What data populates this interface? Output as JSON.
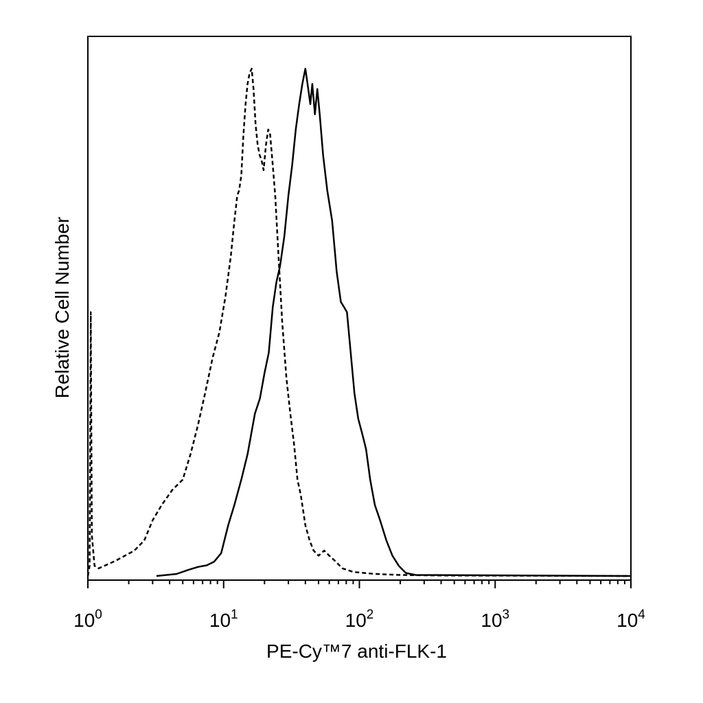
{
  "chart_data": {
    "type": "line",
    "title": "",
    "xlabel": "PE-Cy™7 anti-FLK-1",
    "ylabel": "Relative Cell Number",
    "xscale": "log",
    "xlim": [
      1,
      10000
    ],
    "ylim": [
      0,
      100
    ],
    "grid": false,
    "legend": "none",
    "x_ticks": [
      {
        "value": 1,
        "base": "10",
        "exp": "0"
      },
      {
        "value": 10,
        "base": "10",
        "exp": "1"
      },
      {
        "value": 100,
        "base": "10",
        "exp": "2"
      },
      {
        "value": 1000,
        "base": "10",
        "exp": "3"
      },
      {
        "value": 10000,
        "base": "10",
        "exp": "4"
      }
    ],
    "series": [
      {
        "style": "dashed",
        "color": "#000000",
        "points": [
          [
            1.0,
            0
          ],
          [
            1.03,
            2
          ],
          [
            1.05,
            52
          ],
          [
            1.07,
            8
          ],
          [
            1.12,
            2
          ],
          [
            1.2,
            1.5
          ],
          [
            1.6,
            3
          ],
          [
            2.2,
            5
          ],
          [
            2.6,
            7
          ],
          [
            3.0,
            11
          ],
          [
            3.5,
            14
          ],
          [
            4.2,
            17
          ],
          [
            5.0,
            19
          ],
          [
            5.7,
            24
          ],
          [
            6.5,
            30
          ],
          [
            7.3,
            36
          ],
          [
            8.3,
            43
          ],
          [
            9.3,
            48
          ],
          [
            10.3,
            55
          ],
          [
            11.3,
            63
          ],
          [
            12.0,
            70
          ],
          [
            12.6,
            75
          ],
          [
            13.0,
            76
          ],
          [
            13.5,
            79
          ],
          [
            14.0,
            87
          ],
          [
            14.5,
            93
          ],
          [
            15.0,
            97
          ],
          [
            15.5,
            99
          ],
          [
            16.1,
            100
          ],
          [
            16.6,
            96
          ],
          [
            17.2,
            89
          ],
          [
            17.8,
            85
          ],
          [
            18.4,
            83
          ],
          [
            19.0,
            82
          ],
          [
            19.7,
            80
          ],
          [
            20.5,
            85
          ],
          [
            21.3,
            88
          ],
          [
            22.0,
            87
          ],
          [
            23.0,
            81
          ],
          [
            24.0,
            75
          ],
          [
            25.5,
            62
          ],
          [
            27.0,
            50
          ],
          [
            29.0,
            39
          ],
          [
            31.0,
            32
          ],
          [
            33.0,
            26
          ],
          [
            35.0,
            19
          ],
          [
            37.0,
            16
          ],
          [
            40.0,
            10
          ],
          [
            43.0,
            7
          ],
          [
            46.0,
            5
          ],
          [
            50.0,
            4
          ],
          [
            55.0,
            5
          ],
          [
            60.0,
            4
          ],
          [
            66.0,
            3
          ],
          [
            75.0,
            1.5
          ],
          [
            90.0,
            0.8
          ],
          [
            130.0,
            0.4
          ],
          [
            200.0,
            0.2
          ],
          [
            400.0,
            0.1
          ],
          [
            10000.0,
            0
          ]
        ]
      },
      {
        "style": "solid",
        "color": "#000000",
        "points": [
          [
            3.2,
            0
          ],
          [
            4.5,
            0.4
          ],
          [
            5.5,
            1.2
          ],
          [
            6.5,
            1.8
          ],
          [
            7.5,
            2.1
          ],
          [
            8.5,
            2.8
          ],
          [
            9.6,
            4.5
          ],
          [
            10.8,
            10
          ],
          [
            12.0,
            14
          ],
          [
            13.5,
            19
          ],
          [
            15.0,
            24
          ],
          [
            17.0,
            32
          ],
          [
            18.5,
            35
          ],
          [
            20.0,
            40
          ],
          [
            21.5,
            44
          ],
          [
            23.0,
            53
          ],
          [
            24.5,
            58
          ],
          [
            26.0,
            61
          ],
          [
            28.0,
            67
          ],
          [
            30.0,
            75
          ],
          [
            32.0,
            81
          ],
          [
            34.0,
            88
          ],
          [
            36.0,
            93
          ],
          [
            38.0,
            97
          ],
          [
            40.0,
            100
          ],
          [
            42.0,
            96
          ],
          [
            43.5,
            93
          ],
          [
            45.0,
            97
          ],
          [
            47.0,
            91
          ],
          [
            49.0,
            96
          ],
          [
            51.0,
            91
          ],
          [
            54.0,
            83
          ],
          [
            58.0,
            76
          ],
          [
            63.0,
            70
          ],
          [
            68.0,
            60
          ],
          [
            73.0,
            54
          ],
          [
            77.0,
            53
          ],
          [
            81.0,
            52
          ],
          [
            85.0,
            46
          ],
          [
            92.0,
            36
          ],
          [
            98.0,
            31
          ],
          [
            105.0,
            28
          ],
          [
            112.0,
            25
          ],
          [
            120.0,
            19
          ],
          [
            130.0,
            14
          ],
          [
            142.0,
            11
          ],
          [
            158.0,
            7
          ],
          [
            175.0,
            4
          ],
          [
            195.0,
            2
          ],
          [
            220.0,
            0.6
          ],
          [
            260.0,
            0.2
          ],
          [
            10000.0,
            0
          ]
        ]
      }
    ]
  }
}
